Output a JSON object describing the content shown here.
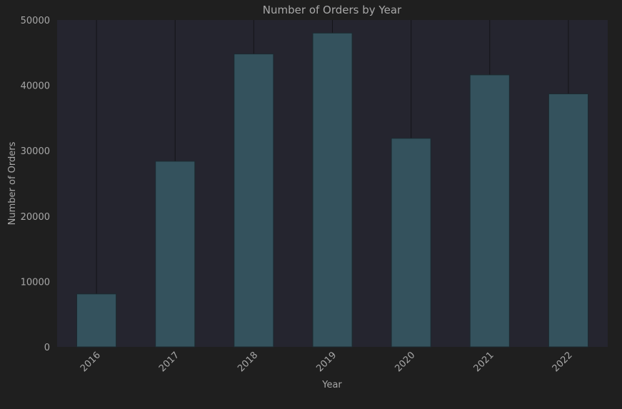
{
  "chart_data": {
    "type": "bar",
    "title": "Number of Orders by Year",
    "xlabel": "Year",
    "ylabel": "Number of Orders",
    "categories": [
      "2016",
      "2017",
      "2018",
      "2019",
      "2020",
      "2021",
      "2022"
    ],
    "values": [
      8100,
      28400,
      44800,
      48000,
      31900,
      41600,
      38700
    ],
    "ylim": [
      0,
      50000
    ],
    "yticks": [
      0,
      10000,
      20000,
      30000,
      40000,
      50000
    ],
    "grid": "vertical",
    "legend": "none",
    "colors": {
      "page_background": "#1f1f1f",
      "plot_background": "#25252f",
      "bar_fill": "#34525d",
      "bar_edge": "#1c2a30",
      "grid_line": "#141418",
      "text": "#a8a8a8"
    }
  }
}
